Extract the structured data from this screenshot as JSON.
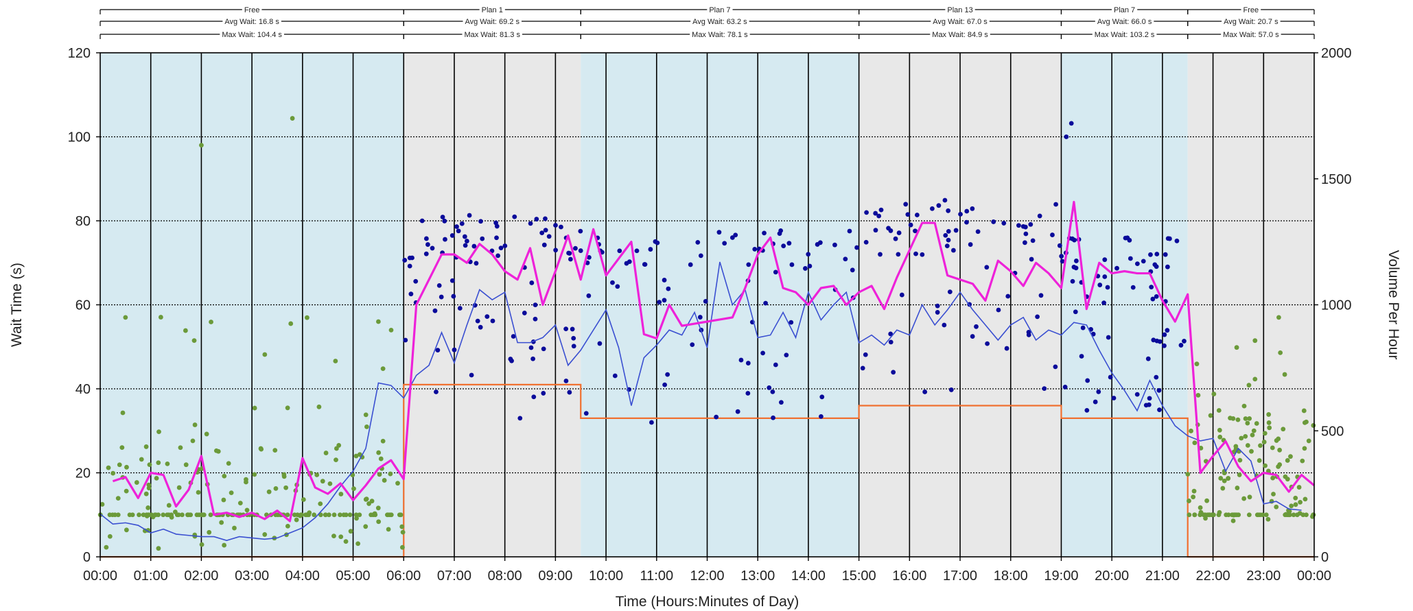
{
  "chart_data": {
    "type": "scatter",
    "xlabel": "Time (Hours:Minutes of Day)",
    "ylabel": "Wait Time (s)",
    "y2label": "Volume Per Hour",
    "xlim": [
      0,
      24
    ],
    "ylim": [
      0,
      120
    ],
    "y2lim": [
      0,
      2000
    ],
    "xticks": [
      "00:00",
      "01:00",
      "02:00",
      "03:00",
      "04:00",
      "05:00",
      "06:00",
      "07:00",
      "08:00",
      "09:00",
      "10:00",
      "11:00",
      "12:00",
      "13:00",
      "14:00",
      "15:00",
      "16:00",
      "17:00",
      "18:00",
      "19:00",
      "20:00",
      "21:00",
      "22:00",
      "23:00",
      "00:00"
    ],
    "yticks": [
      0,
      20,
      40,
      60,
      80,
      100,
      120
    ],
    "y2ticks": [
      0,
      500,
      1000,
      1500,
      2000
    ],
    "grid": true,
    "colors": {
      "free_band": "#d6eaf1",
      "plan_band": "#e8e8e8",
      "free_points": "#6b9a3a",
      "plan_points": "#0a0a9a",
      "avg_wait_line": "#ee22d9",
      "volume_line": "#3a4fd1",
      "plan_step_line": "#f07030"
    },
    "plan_bands": [
      {
        "label": "Free",
        "start": 0,
        "end": 6,
        "avg": "Avg Wait: 16.8 s",
        "max": "Max Wait: 104.4 s",
        "color": "free"
      },
      {
        "label": "Plan 1",
        "start": 6,
        "end": 9.5,
        "avg": "Avg Wait: 69.2 s",
        "max": "Max Wait: 81.3 s",
        "color": "plan"
      },
      {
        "label": "Plan 7",
        "start": 9.5,
        "end": 15,
        "avg": "Avg Wait: 63.2 s",
        "max": "Max Wait: 78.1 s",
        "color": "free"
      },
      {
        "label": "Plan 13",
        "start": 15,
        "end": 19,
        "avg": "Avg Wait: 67.0 s",
        "max": "Max Wait: 84.9 s",
        "color": "plan"
      },
      {
        "label": "Plan 7",
        "start": 19,
        "end": 21.5,
        "avg": "Avg Wait: 66.0 s",
        "max": "Max Wait: 103.2 s",
        "color": "free"
      },
      {
        "label": "Free",
        "start": 21.5,
        "end": 24,
        "avg": "Avg Wait: 20.7 s",
        "max": "Max Wait: 57.0 s",
        "color": "plan"
      }
    ],
    "series": [
      {
        "name": "",
        "kind": "step",
        "axis": "left",
        "points": [
          [
            0,
            0
          ],
          [
            6,
            0
          ],
          [
            6,
            41
          ],
          [
            9.5,
            41
          ],
          [
            9.5,
            33
          ],
          [
            15,
            33
          ],
          [
            15,
            36
          ],
          [
            19,
            36
          ],
          [
            19,
            33
          ],
          [
            21.5,
            33
          ],
          [
            21.5,
            0
          ],
          [
            24,
            0
          ]
        ]
      },
      {
        "name": "",
        "kind": "line",
        "axis": "right",
        "points": [
          [
            0,
            170
          ],
          [
            0.25,
            130
          ],
          [
            0.5,
            135
          ],
          [
            0.75,
            125
          ],
          [
            1,
            95
          ],
          [
            1.25,
            110
          ],
          [
            1.5,
            90
          ],
          [
            1.75,
            85
          ],
          [
            2,
            80
          ],
          [
            2.25,
            80
          ],
          [
            2.5,
            65
          ],
          [
            2.75,
            80
          ],
          [
            3,
            75
          ],
          [
            3.25,
            70
          ],
          [
            3.5,
            75
          ],
          [
            3.75,
            95
          ],
          [
            4,
            115
          ],
          [
            4.25,
            155
          ],
          [
            4.5,
            210
          ],
          [
            4.75,
            280
          ],
          [
            5,
            340
          ],
          [
            5.25,
            430
          ],
          [
            5.5,
            690
          ],
          [
            5.75,
            680
          ],
          [
            6,
            630
          ],
          [
            6.25,
            720
          ],
          [
            6.5,
            760
          ],
          [
            6.75,
            890
          ],
          [
            7,
            770
          ],
          [
            7.25,
            920
          ],
          [
            7.5,
            1060
          ],
          [
            7.75,
            1020
          ],
          [
            8,
            1050
          ],
          [
            8.25,
            850
          ],
          [
            8.5,
            850
          ],
          [
            8.75,
            870
          ],
          [
            9,
            920
          ],
          [
            9.25,
            760
          ],
          [
            9.5,
            820
          ],
          [
            10,
            980
          ],
          [
            10.25,
            830
          ],
          [
            10.5,
            600
          ],
          [
            10.75,
            790
          ],
          [
            11,
            840
          ],
          [
            11.25,
            900
          ],
          [
            11.5,
            880
          ],
          [
            11.75,
            970
          ],
          [
            12,
            830
          ],
          [
            12.25,
            1170
          ],
          [
            12.5,
            1000
          ],
          [
            12.75,
            1060
          ],
          [
            13,
            870
          ],
          [
            13.25,
            880
          ],
          [
            13.5,
            970
          ],
          [
            13.75,
            870
          ],
          [
            14,
            1050
          ],
          [
            14.25,
            940
          ],
          [
            14.5,
            1000
          ],
          [
            14.75,
            1050
          ],
          [
            15,
            850
          ],
          [
            15.25,
            880
          ],
          [
            15.5,
            840
          ],
          [
            15.75,
            900
          ],
          [
            16,
            880
          ],
          [
            16.25,
            1000
          ],
          [
            16.5,
            920
          ],
          [
            16.75,
            980
          ],
          [
            17,
            1050
          ],
          [
            17.25,
            980
          ],
          [
            17.5,
            920
          ],
          [
            17.75,
            860
          ],
          [
            18,
            920
          ],
          [
            18.25,
            950
          ],
          [
            18.5,
            860
          ],
          [
            18.75,
            900
          ],
          [
            19,
            880
          ],
          [
            19.25,
            930
          ],
          [
            19.5,
            920
          ],
          [
            19.75,
            820
          ],
          [
            20,
            730
          ],
          [
            20.25,
            660
          ],
          [
            20.5,
            580
          ],
          [
            20.75,
            700
          ],
          [
            21,
            600
          ],
          [
            21.25,
            520
          ],
          [
            21.5,
            480
          ],
          [
            21.75,
            460
          ],
          [
            22,
            470
          ],
          [
            22.25,
            340
          ],
          [
            22.5,
            430
          ],
          [
            22.75,
            380
          ],
          [
            23,
            210
          ],
          [
            23.25,
            220
          ],
          [
            23.5,
            190
          ],
          [
            23.75,
            185
          ]
        ]
      },
      {
        "name": "",
        "kind": "line",
        "axis": "left",
        "points": [
          [
            0.25,
            18
          ],
          [
            0.5,
            19
          ],
          [
            0.75,
            14
          ],
          [
            1,
            20
          ],
          [
            1.25,
            19.5
          ],
          [
            1.5,
            12
          ],
          [
            1.75,
            16
          ],
          [
            2,
            24
          ],
          [
            2.25,
            10
          ],
          [
            2.5,
            10.5
          ],
          [
            2.75,
            9.5
          ],
          [
            3,
            10.5
          ],
          [
            3.25,
            9
          ],
          [
            3.5,
            11
          ],
          [
            3.75,
            8.5
          ],
          [
            4,
            23.5
          ],
          [
            4.25,
            16.5
          ],
          [
            4.5,
            15
          ],
          [
            4.75,
            17.5
          ],
          [
            5,
            13.5
          ],
          [
            5.25,
            17
          ],
          [
            5.5,
            21
          ],
          [
            5.75,
            23
          ],
          [
            6,
            18.5
          ],
          [
            6.25,
            60
          ],
          [
            6.5,
            66
          ],
          [
            6.75,
            72
          ],
          [
            7,
            72
          ],
          [
            7.25,
            70
          ],
          [
            7.5,
            74.5
          ],
          [
            7.75,
            72
          ],
          [
            8,
            68
          ],
          [
            8.25,
            66
          ],
          [
            8.5,
            73.5
          ],
          [
            8.75,
            60
          ],
          [
            9,
            68
          ],
          [
            9.25,
            76.5
          ],
          [
            9.5,
            66
          ],
          [
            9.75,
            78
          ],
          [
            10,
            67
          ],
          [
            10.25,
            71
          ],
          [
            10.5,
            75
          ],
          [
            10.75,
            53
          ],
          [
            11,
            52
          ],
          [
            11.25,
            60
          ],
          [
            11.5,
            55
          ],
          [
            11.75,
            55.5
          ],
          [
            12,
            56
          ],
          [
            12.25,
            56.5
          ],
          [
            12.5,
            57
          ],
          [
            12.75,
            64
          ],
          [
            13,
            72
          ],
          [
            13.25,
            76
          ],
          [
            13.5,
            64
          ],
          [
            13.75,
            63
          ],
          [
            14,
            60
          ],
          [
            14.25,
            64
          ],
          [
            14.5,
            64.5
          ],
          [
            14.75,
            60
          ],
          [
            15,
            63
          ],
          [
            15.25,
            64.5
          ],
          [
            15.5,
            59
          ],
          [
            15.75,
            66.5
          ],
          [
            16,
            73
          ],
          [
            16.25,
            79.5
          ],
          [
            16.5,
            79.5
          ],
          [
            16.75,
            67
          ],
          [
            17,
            66
          ],
          [
            17.25,
            65
          ],
          [
            17.5,
            61
          ],
          [
            17.75,
            70.5
          ],
          [
            18,
            68
          ],
          [
            18.25,
            64.5
          ],
          [
            18.5,
            70
          ],
          [
            18.75,
            67.5
          ],
          [
            19,
            64
          ],
          [
            19.25,
            84.5
          ],
          [
            19.5,
            59
          ],
          [
            19.75,
            70
          ],
          [
            20,
            67.5
          ],
          [
            20.25,
            68
          ],
          [
            20.5,
            67.5
          ],
          [
            20.75,
            67.5
          ],
          [
            21,
            61
          ],
          [
            21.25,
            56
          ],
          [
            21.5,
            62.5
          ],
          [
            21.75,
            20
          ],
          [
            22,
            24
          ],
          [
            22.25,
            27.5
          ],
          [
            22.5,
            21.5
          ],
          [
            22.75,
            18
          ],
          [
            23,
            20
          ],
          [
            23.25,
            19.5
          ],
          [
            23.5,
            15.5
          ],
          [
            23.75,
            19.5
          ],
          [
            24,
            17
          ]
        ]
      }
    ]
  }
}
